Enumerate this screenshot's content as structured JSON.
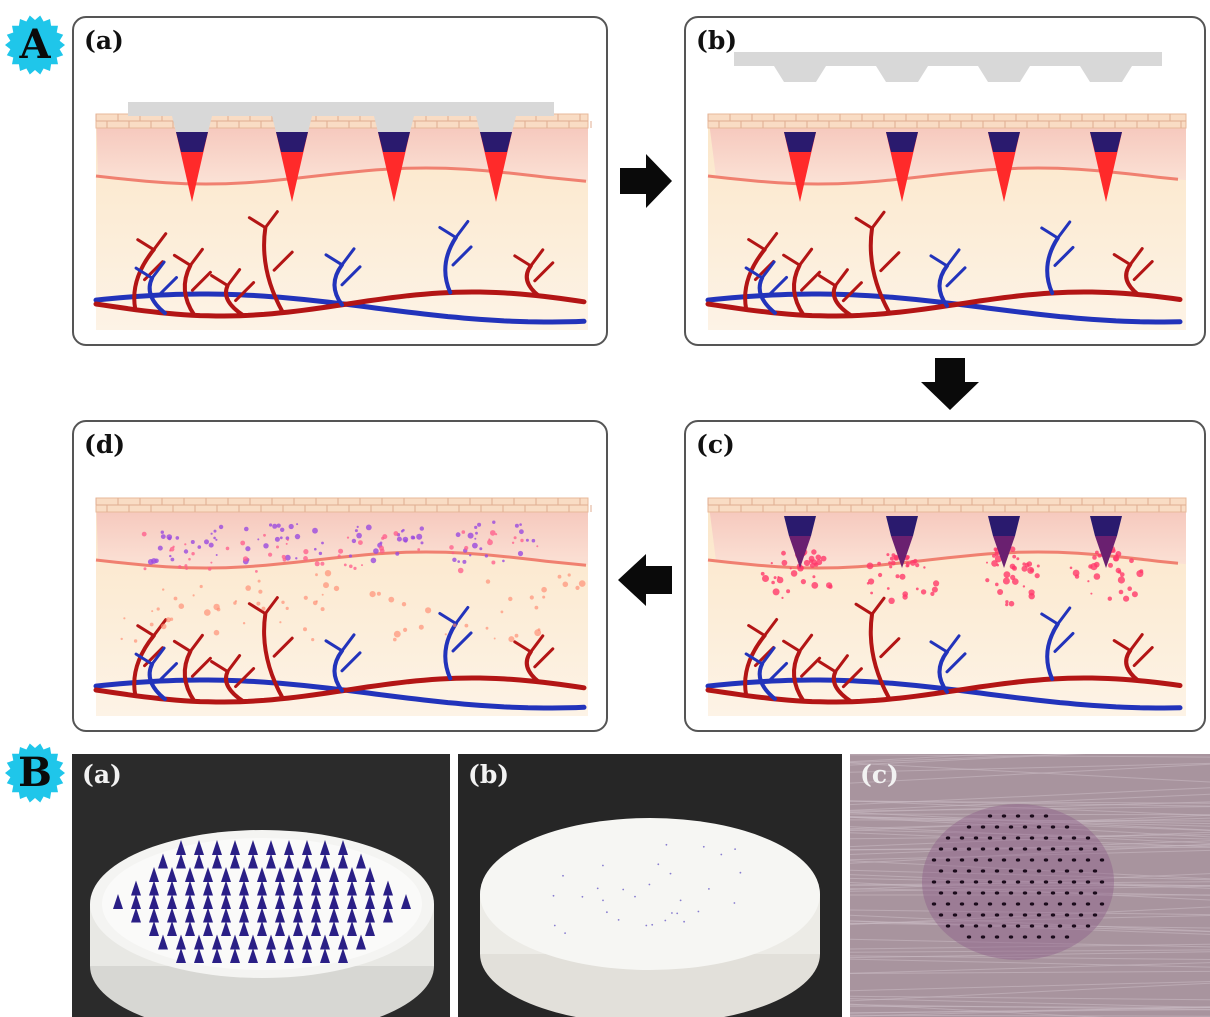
{
  "figure_a": {
    "badge": "A",
    "panels": [
      {
        "id": "a",
        "label": "(a)"
      },
      {
        "id": "b",
        "label": "(b)"
      },
      {
        "id": "c",
        "label": "(c)"
      },
      {
        "id": "d",
        "label": "(d)"
      }
    ]
  },
  "figure_b": {
    "badge": "B",
    "photos": [
      {
        "id": "a",
        "label": "(a)"
      },
      {
        "id": "b",
        "label": "(b)"
      },
      {
        "id": "c",
        "label": "(c)"
      }
    ]
  },
  "colors": {
    "badge_fill": "#1fc6ea",
    "needle_tip": "#ff2a2a",
    "needle_base": "#2a1a6e",
    "artery": "#b31515",
    "vein": "#2233bb",
    "epidermis": "#f7cfc4",
    "dermis": "#f9e0bd"
  }
}
